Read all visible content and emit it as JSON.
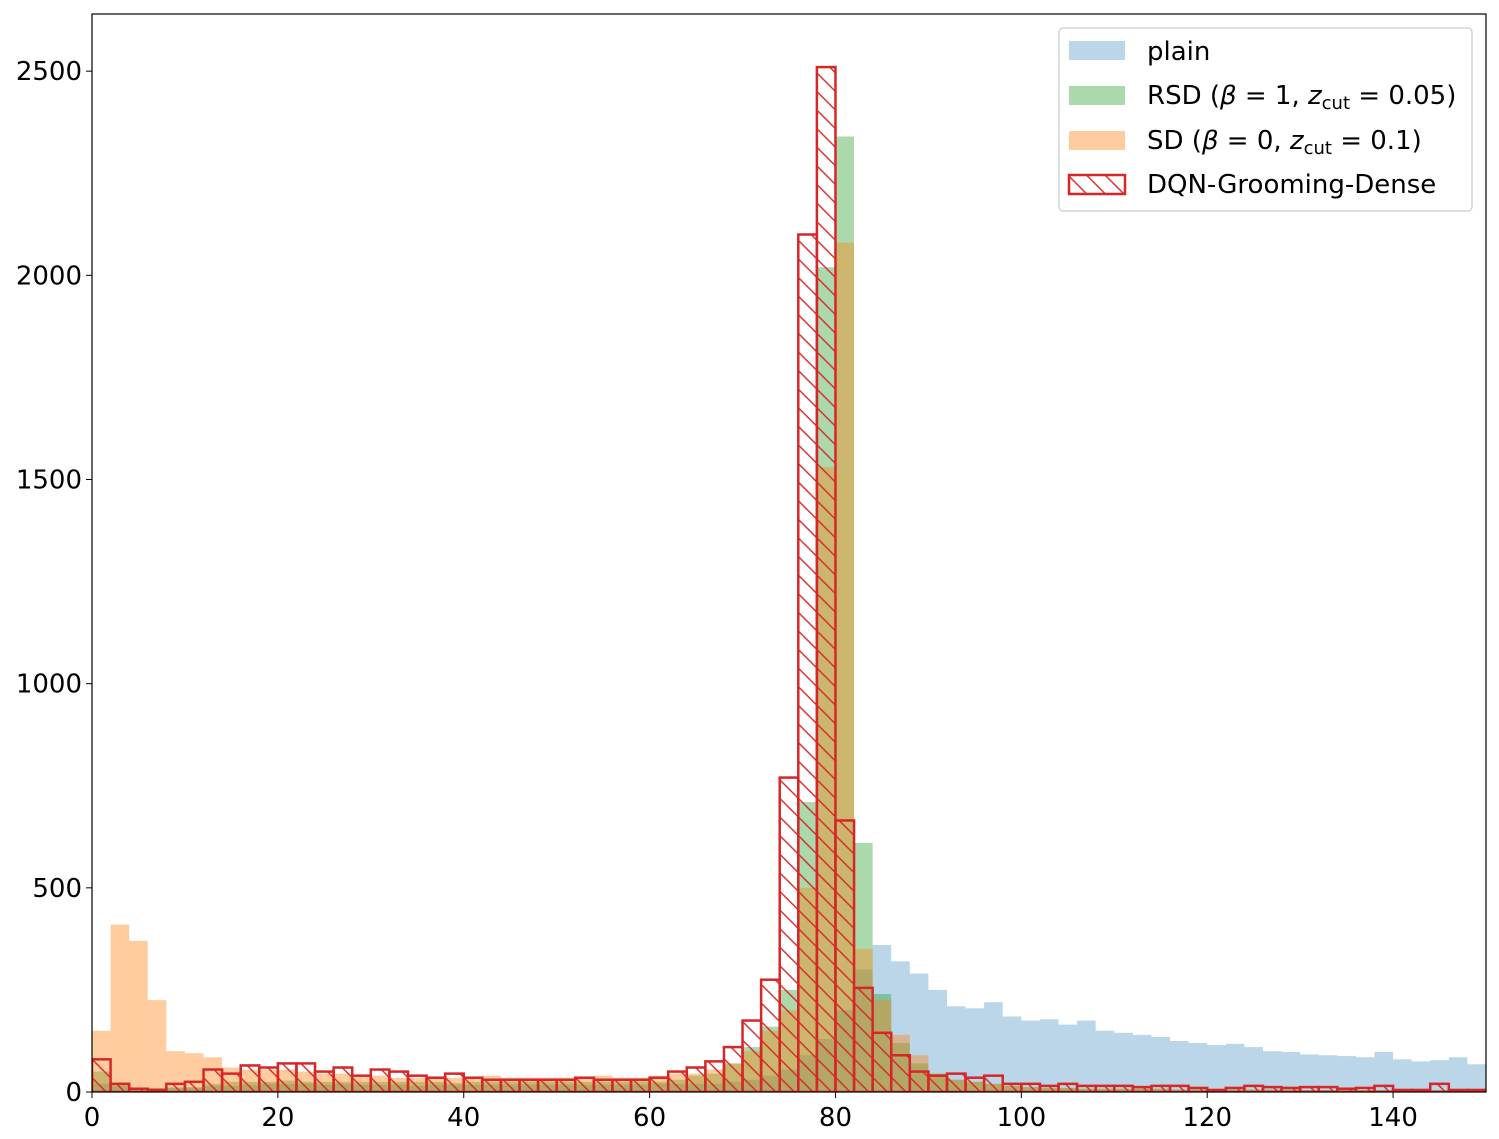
{
  "chart_data": {
    "type": "bar",
    "title": "",
    "xlabel": "",
    "ylabel": "",
    "xlim": [
      0,
      150
    ],
    "ylim": [
      0,
      2640
    ],
    "bin_width": 2,
    "xticks": [
      "0",
      "20",
      "40",
      "60",
      "80",
      "100",
      "120",
      "140"
    ],
    "yticks": [
      "0",
      "500",
      "1000",
      "1500",
      "2000",
      "2500"
    ],
    "grid": false,
    "legend_position": "top-right",
    "series": [
      {
        "name": "plain",
        "style": "filled",
        "color": "#1f77b4",
        "opacity": 0.3,
        "values": [
          20,
          15,
          10,
          8,
          12,
          10,
          15,
          15,
          18,
          20,
          20,
          20,
          18,
          20,
          18,
          18,
          18,
          15,
          18,
          18,
          18,
          18,
          18,
          18,
          18,
          18,
          18,
          18,
          18,
          18,
          20,
          20,
          20,
          20,
          25,
          30,
          40,
          55,
          90,
          130,
          200,
          300,
          360,
          320,
          290,
          250,
          210,
          205,
          220,
          185,
          175,
          178,
          165,
          175,
          150,
          145,
          140,
          135,
          125,
          120,
          115,
          118,
          110,
          100,
          98,
          92,
          90,
          88,
          85,
          98,
          80,
          75,
          78,
          85,
          68
        ]
      },
      {
        "name": "RSD (β = 1, z_cut = 0.05)",
        "label_main": "RSD (",
        "label_beta": "β",
        "label_eq1": " = 1, ",
        "label_z": "z",
        "label_sub": "cut",
        "label_eq2": " = 0.05)",
        "style": "filled",
        "color": "#2ca02c",
        "opacity": 0.4,
        "values": [
          50,
          20,
          10,
          10,
          10,
          12,
          20,
          25,
          25,
          25,
          28,
          25,
          25,
          25,
          25,
          25,
          25,
          25,
          25,
          22,
          25,
          25,
          25,
          25,
          25,
          25,
          25,
          25,
          25,
          25,
          25,
          30,
          40,
          45,
          70,
          110,
          160,
          250,
          710,
          2020,
          2340,
          610,
          240,
          120,
          70,
          45,
          30,
          25,
          20,
          15,
          12,
          10,
          10,
          8,
          8,
          8,
          8,
          8,
          6,
          6,
          6,
          6,
          6,
          6,
          6,
          5,
          5,
          5,
          5,
          5,
          5,
          5,
          5,
          5,
          5
        ]
      },
      {
        "name": "SD (β = 0, z_cut = 0.1)",
        "label_main": "SD (",
        "label_beta": "β",
        "label_eq1": " = 0, ",
        "label_z": "z",
        "label_sub": "cut",
        "label_eq2": " = 0.1)",
        "style": "filled",
        "color": "#ff7f0e",
        "opacity": 0.4,
        "values": [
          150,
          410,
          370,
          225,
          100,
          95,
          85,
          60,
          55,
          55,
          55,
          50,
          45,
          45,
          40,
          40,
          35,
          35,
          35,
          35,
          35,
          40,
          35,
          35,
          35,
          35,
          35,
          40,
          35,
          35,
          40,
          45,
          45,
          55,
          70,
          100,
          150,
          200,
          500,
          1530,
          2080,
          350,
          225,
          140,
          90,
          45,
          30,
          25,
          20,
          15,
          12,
          10,
          10,
          8,
          8,
          8,
          8,
          8,
          6,
          6,
          6,
          6,
          6,
          6,
          6,
          5,
          5,
          5,
          5,
          5,
          5,
          5,
          5,
          5,
          5
        ]
      },
      {
        "name": "DQN-Grooming-Dense",
        "style": "hatched-step",
        "color": "#d62728",
        "values": [
          80,
          20,
          8,
          5,
          20,
          25,
          55,
          45,
          65,
          60,
          70,
          70,
          50,
          60,
          40,
          55,
          50,
          40,
          35,
          45,
          35,
          30,
          30,
          30,
          30,
          30,
          35,
          30,
          30,
          30,
          35,
          50,
          60,
          75,
          110,
          175,
          275,
          770,
          2100,
          2510,
          665,
          255,
          145,
          90,
          50,
          40,
          45,
          35,
          40,
          20,
          20,
          15,
          20,
          15,
          15,
          15,
          12,
          15,
          15,
          10,
          5,
          10,
          15,
          12,
          10,
          12,
          12,
          8,
          10,
          15,
          5,
          5,
          20,
          5,
          5
        ]
      }
    ]
  }
}
